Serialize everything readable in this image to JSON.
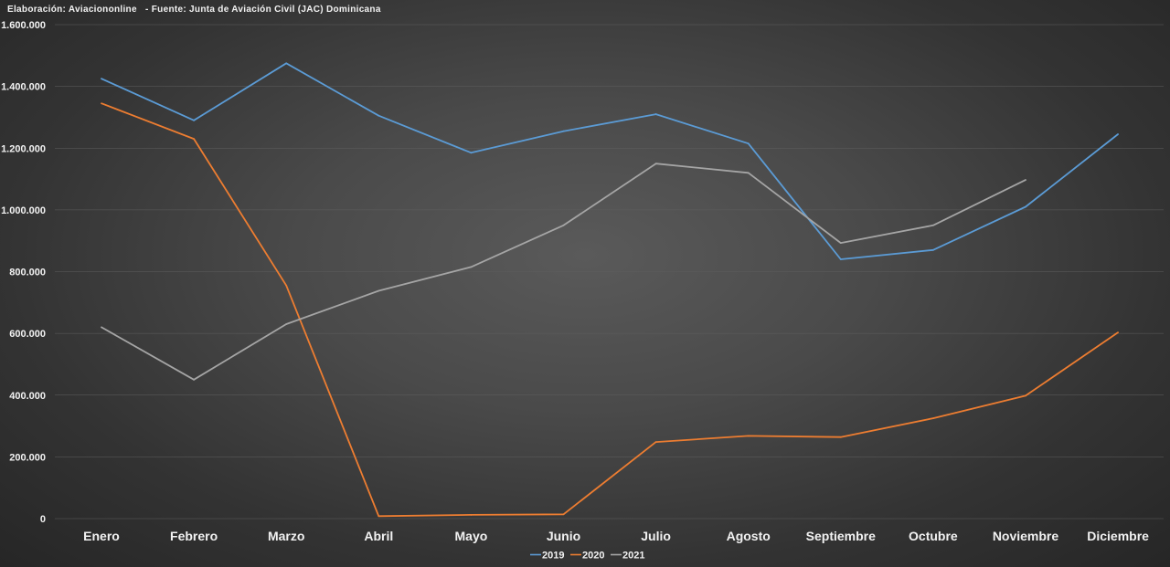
{
  "source_note": "Elaboración: Aviaciononline   - Fuente: Junta de Aviación Civil (JAC) Dominicana",
  "chart_data": {
    "type": "line",
    "categories": [
      "Enero",
      "Febrero",
      "Marzo",
      "Abril",
      "Mayo",
      "Junio",
      "Julio",
      "Agosto",
      "Septiembre",
      "Octubre",
      "Noviembre",
      "Diciembre"
    ],
    "y_ticks": [
      "0",
      "200.000",
      "400.000",
      "600.000",
      "800.000",
      "1.000.000",
      "1.200.000",
      "1.400.000",
      "1.600.000"
    ],
    "ylim": [
      0,
      1600000
    ],
    "grid": true,
    "legend_position": "bottom",
    "series": [
      {
        "name": "2019",
        "color": "#5b9bd5",
        "values": [
          1425000,
          1290000,
          1475000,
          1305000,
          1185000,
          1255000,
          1310000,
          1215000,
          840000,
          870000,
          1010000,
          1245000
        ]
      },
      {
        "name": "2020",
        "color": "#ed7d31",
        "values": [
          1345000,
          1230000,
          755000,
          8000,
          12000,
          14000,
          248000,
          268000,
          264000,
          325000,
          398000,
          603000
        ]
      },
      {
        "name": "2021",
        "color": "#a5a5a5",
        "values": [
          620000,
          450000,
          630000,
          738000,
          815000,
          950000,
          1150000,
          1120000,
          893000,
          950000,
          1097000,
          null
        ]
      }
    ]
  }
}
